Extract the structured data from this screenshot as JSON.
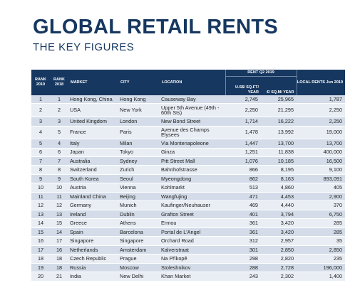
{
  "title": "GLOBAL RETAIL RENTS",
  "subtitle": "THE KEY FIGURES",
  "chart_data": {
    "type": "table",
    "header": {
      "rank_2019": "RANK 2019",
      "rank_2018": "RANK 2018",
      "market": "MARKET",
      "city": "CITY",
      "location": "LOCATION",
      "rent_group": "RENT Q2 2019",
      "usd": "U.S$/ SQ.FT/ YEAR",
      "eur": "€/ SQ.M/ YEAR",
      "local": "LOCAL RENTS Jun 2019"
    },
    "rows": [
      {
        "r19": "1",
        "r18": "1",
        "market": "Hong Kong, China",
        "city": "Hong Kong",
        "location": "Causeway Bay",
        "usd": "2,745",
        "eur": "25,965",
        "local": "1,787"
      },
      {
        "r19": "2",
        "r18": "2",
        "market": "USA",
        "city": "New York",
        "location": "Upper 5th Avenue (49th - 60th Sts)",
        "usd": "2,250",
        "eur": "21,295",
        "local": "2,250"
      },
      {
        "r19": "3",
        "r18": "3",
        "market": "United Kingdom",
        "city": "London",
        "location": "New Bond Street",
        "usd": "1,714",
        "eur": "16,222",
        "local": "2,250"
      },
      {
        "r19": "4",
        "r18": "5",
        "market": "France",
        "city": "Paris",
        "location": "Avenue des Champs Elysees",
        "usd": "1,478",
        "eur": "13,992",
        "local": "19,000"
      },
      {
        "r19": "5",
        "r18": "4",
        "market": "Italy",
        "city": "Milan",
        "location": "Via Montenapoleone",
        "usd": "1,447",
        "eur": "13,700",
        "local": "13,700"
      },
      {
        "r19": "6",
        "r18": "6",
        "market": "Japan",
        "city": "Tokyo",
        "location": "Ginza",
        "usd": "1,251",
        "eur": "11,838",
        "local": "400,000"
      },
      {
        "r19": "7",
        "r18": "7",
        "market": "Australia",
        "city": "Sydney",
        "location": "Pitt Street Mall",
        "usd": "1,076",
        "eur": "10,185",
        "local": "16,500"
      },
      {
        "r19": "8",
        "r18": "8",
        "market": "Switzerland",
        "city": "Zurich",
        "location": "Bahnhofstrasse",
        "usd": "866",
        "eur": "8,195",
        "local": "9,100"
      },
      {
        "r19": "9",
        "r18": "9",
        "market": "South Korea",
        "city": "Seoul",
        "location": "Myeongdong",
        "usd": "862",
        "eur": "8,163",
        "local": "893,091"
      },
      {
        "r19": "10",
        "r18": "10",
        "market": "Austria",
        "city": "Vienna",
        "location": "Kohlmarkt",
        "usd": "513",
        "eur": "4,860",
        "local": "405"
      },
      {
        "r19": "11",
        "r18": "11",
        "market": "Mainland China",
        "city": "Beijing",
        "location": "Wangfujing",
        "usd": "471",
        "eur": "4,453",
        "local": "2,900"
      },
      {
        "r19": "12",
        "r18": "12",
        "market": "Germany",
        "city": "Munich",
        "location": "Kaufinger/Neuhauser",
        "usd": "469",
        "eur": "4,440",
        "local": "370"
      },
      {
        "r19": "13",
        "r18": "13",
        "market": "Ireland",
        "city": "Dublin",
        "location": "Grafton Street",
        "usd": "401",
        "eur": "3,794",
        "local": "6,750"
      },
      {
        "r19": "14",
        "r18": "15",
        "market": "Greece",
        "city": "Athens",
        "location": "Ermou",
        "usd": "361",
        "eur": "3,420",
        "local": "285"
      },
      {
        "r19": "15",
        "r18": "14",
        "market": "Spain",
        "city": "Barcelona",
        "location": "Portal de L'Angel",
        "usd": "361",
        "eur": "3,420",
        "local": "285"
      },
      {
        "r19": "16",
        "r18": "17",
        "market": "Singapore",
        "city": "Singapore",
        "location": "Orchard Road",
        "usd": "312",
        "eur": "2,957",
        "local": "35"
      },
      {
        "r19": "17",
        "r18": "16",
        "market": "Netherlands",
        "city": "Amsterdam",
        "location": "Kalverstraat",
        "usd": "301",
        "eur": "2,850",
        "local": "2,850"
      },
      {
        "r19": "18",
        "r18": "18",
        "market": "Czech Republic",
        "city": "Prague",
        "location": "Na Příkopě",
        "usd": "298",
        "eur": "2,820",
        "local": "235"
      },
      {
        "r19": "19",
        "r18": "18",
        "market": "Russia",
        "city": "Moscow",
        "location": "Stoleshnikov",
        "usd": "288",
        "eur": "2,728",
        "local": "196,000"
      },
      {
        "r19": "20",
        "r18": "21",
        "market": "India",
        "city": "New Delhi",
        "location": "Khan Market",
        "usd": "243",
        "eur": "2,302",
        "local": "1,400"
      }
    ]
  }
}
